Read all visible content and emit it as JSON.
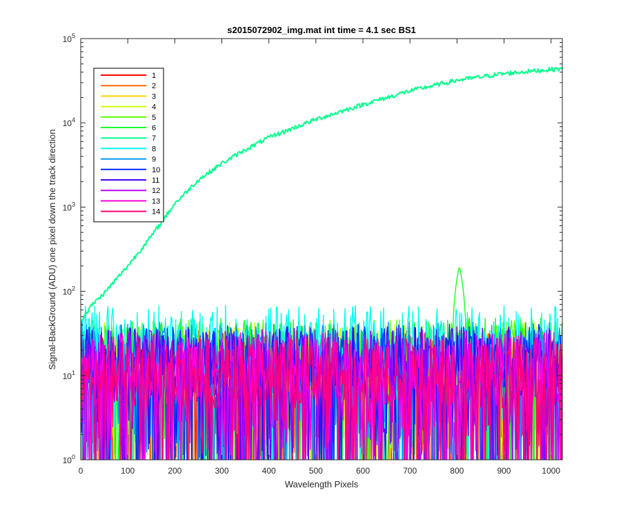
{
  "chart_data": {
    "type": "line",
    "title": "s2015072902_img.mat int time = 4.1 sec   BS1",
    "xlabel": "Wavelength Pixels",
    "ylabel": "Signal-BackGround (ADU) one pixel down the track direction",
    "xlim": [
      0,
      1024
    ],
    "ylim": [
      1,
      100000
    ],
    "yscale": "log",
    "x_ticks": [
      "0",
      "100",
      "200",
      "300",
      "400",
      "500",
      "600",
      "700",
      "800",
      "900",
      "1000"
    ],
    "y_ticks": [
      {
        "base": "10",
        "exp": "0"
      },
      {
        "base": "10",
        "exp": "1"
      },
      {
        "base": "10",
        "exp": "2"
      },
      {
        "base": "10",
        "exp": "3"
      },
      {
        "base": "10",
        "exp": "4"
      },
      {
        "base": "10",
        "exp": "5"
      }
    ],
    "legend_position": "top-left",
    "series": [
      {
        "name": "1",
        "color": "#ff0000",
        "level": 12
      },
      {
        "name": "2",
        "color": "#ff6a00",
        "level": 13
      },
      {
        "name": "3",
        "color": "#ffd200",
        "level": 14
      },
      {
        "name": "4",
        "color": "#c8ff00",
        "level": 16
      },
      {
        "name": "5",
        "color": "#5aff00",
        "level": 17
      },
      {
        "name": "6",
        "color": "#14ff28",
        "level": 18,
        "peak": {
          "x": 805,
          "y": 200
        }
      },
      {
        "name": "7",
        "color": "#00ff8c",
        "level": null,
        "curve": [
          [
            0,
            45
          ],
          [
            25,
            70
          ],
          [
            50,
            95
          ],
          [
            100,
            200
          ],
          [
            150,
            450
          ],
          [
            200,
            1100
          ],
          [
            250,
            2100
          ],
          [
            300,
            3300
          ],
          [
            350,
            4800
          ],
          [
            400,
            6700
          ],
          [
            500,
            11000
          ],
          [
            600,
            16500
          ],
          [
            700,
            24000
          ],
          [
            800,
            32000
          ],
          [
            900,
            38500
          ],
          [
            1000,
            43000
          ],
          [
            1024,
            44000
          ]
        ]
      },
      {
        "name": "8",
        "color": "#00fff0",
        "level": 25
      },
      {
        "name": "9",
        "color": "#0096ff",
        "level": 16
      },
      {
        "name": "10",
        "color": "#0028ff",
        "level": 15
      },
      {
        "name": "11",
        "color": "#4600ff",
        "level": 14
      },
      {
        "name": "12",
        "color": "#b400ff",
        "level": 13
      },
      {
        "name": "13",
        "color": "#ff00dc",
        "level": 12
      },
      {
        "name": "14",
        "color": "#ff0078",
        "level": 11
      }
    ]
  }
}
